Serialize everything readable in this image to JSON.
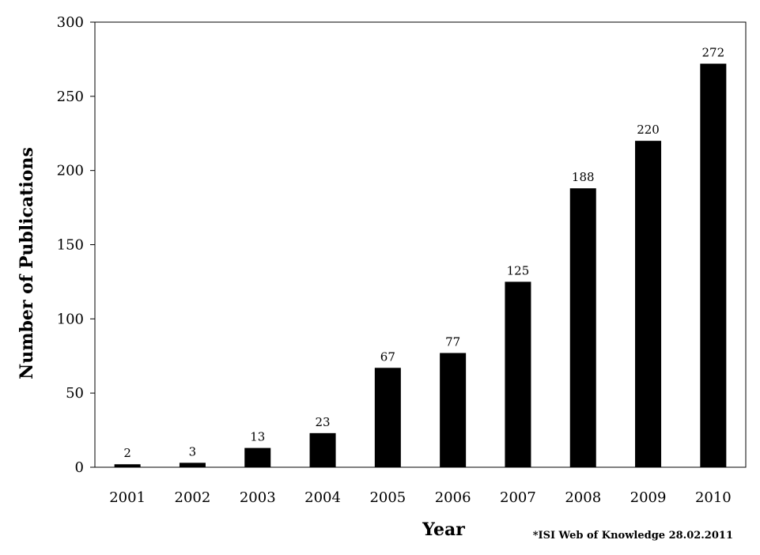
{
  "chart_data": {
    "type": "bar",
    "categories": [
      "2001",
      "2002",
      "2003",
      "2004",
      "2005",
      "2006",
      "2007",
      "2008",
      "2009",
      "2010"
    ],
    "values": [
      2,
      3,
      13,
      23,
      67,
      77,
      125,
      188,
      220,
      272
    ],
    "data_labels": [
      "2",
      "3",
      "13",
      "23",
      "67",
      "77",
      "125",
      "188",
      "220",
      "272"
    ],
    "title": "",
    "xlabel": "Year",
    "ylabel": "Number of Publications",
    "ylim": [
      0,
      300
    ],
    "yticks": [
      0,
      50,
      100,
      150,
      200,
      250,
      300
    ],
    "ytick_labels": [
      "0",
      "50",
      "100",
      "150",
      "200",
      "250",
      "300"
    ],
    "grid": false,
    "bar_color": "#000000",
    "annotation": "*ISI Web of Knowledge 28.02.2011"
  }
}
